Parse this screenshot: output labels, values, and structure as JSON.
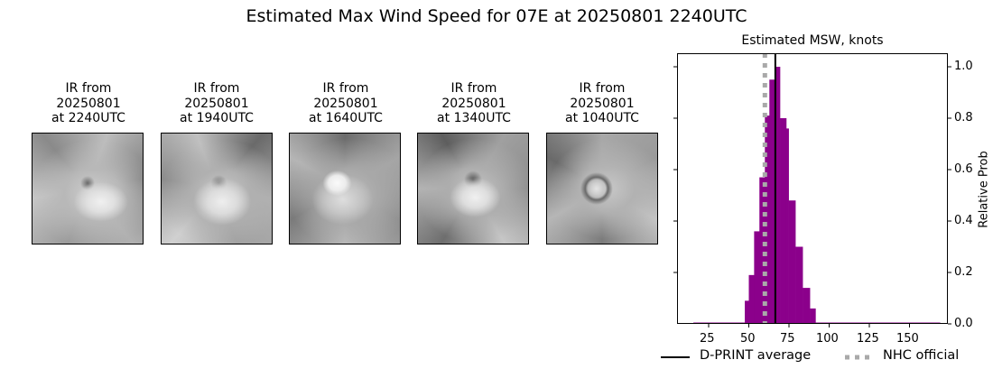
{
  "figure": {
    "title": "Estimated Max Wind Speed for 07E at 20250801 2240UTC"
  },
  "panels": [
    {
      "line1": "IR from",
      "line2": "20250801",
      "line3": "at 2240UTC"
    },
    {
      "line1": "IR from",
      "line2": "20250801",
      "line3": "at 1940UTC"
    },
    {
      "line1": "IR from",
      "line2": "20250801",
      "line3": "at 1640UTC"
    },
    {
      "line1": "IR from",
      "line2": "20250801",
      "line3": "at 1340UTC"
    },
    {
      "line1": "IR from",
      "line2": "20250801",
      "line3": "at 1040UTC"
    }
  ],
  "chart": {
    "title": "Estimated MSW, knots",
    "ylabel": "Relative Prob",
    "xticks": [
      "25",
      "50",
      "75",
      "100",
      "125",
      "150"
    ],
    "yticks": [
      "0.0",
      "0.2",
      "0.4",
      "0.6",
      "0.8",
      "1.0"
    ],
    "legend": {
      "dprint": "D-PRINT average",
      "nhc": "NHC official"
    },
    "colors": {
      "bars": "#8b008b",
      "dprint_line": "#000000",
      "nhc_line": "#a9a9a9"
    }
  },
  "chart_data": {
    "type": "bar",
    "title": "Estimated MSW, knots",
    "xlabel": "",
    "ylabel": "Relative Prob",
    "xlim": [
      0,
      174
    ],
    "ylim": [
      0,
      1.05
    ],
    "xticks": [
      25,
      50,
      75,
      100,
      125,
      150
    ],
    "yticks": [
      0.0,
      0.2,
      0.4,
      0.6,
      0.8,
      1.0
    ],
    "y_axis_position": "right",
    "grid": false,
    "bins": [
      {
        "x0": 15.5,
        "x1": 47.5,
        "value": 0.005
      },
      {
        "x0": 47.5,
        "x1": 50.0,
        "value": 0.09
      },
      {
        "x0": 50.0,
        "x1": 53.3,
        "value": 0.19
      },
      {
        "x0": 53.3,
        "x1": 56.6,
        "value": 0.36
      },
      {
        "x0": 56.6,
        "x1": 60.0,
        "value": 0.57
      },
      {
        "x0": 60.0,
        "x1": 62.8,
        "value": 0.81
      },
      {
        "x0": 62.8,
        "x1": 66.6,
        "value": 0.95
      },
      {
        "x0": 66.6,
        "x1": 69.4,
        "value": 1.0
      },
      {
        "x0": 69.4,
        "x1": 73.3,
        "value": 0.8
      },
      {
        "x0": 73.3,
        "x1": 74.8,
        "value": 0.76
      },
      {
        "x0": 74.8,
        "x1": 79.0,
        "value": 0.48
      },
      {
        "x0": 79.0,
        "x1": 83.5,
        "value": 0.3
      },
      {
        "x0": 83.5,
        "x1": 88.0,
        "value": 0.14
      },
      {
        "x0": 88.0,
        "x1": 91.5,
        "value": 0.06
      },
      {
        "x0": 91.5,
        "x1": 169.0,
        "value": 0.005
      }
    ],
    "vlines": [
      {
        "name": "D-PRINT average",
        "x": 66.5,
        "style": "solid",
        "color": "#000000"
      },
      {
        "name": "NHC official",
        "x": 60,
        "style": "dotted",
        "color": "#a9a9a9"
      }
    ],
    "legend": [
      "D-PRINT average",
      "NHC official"
    ],
    "legend_position": "below"
  }
}
